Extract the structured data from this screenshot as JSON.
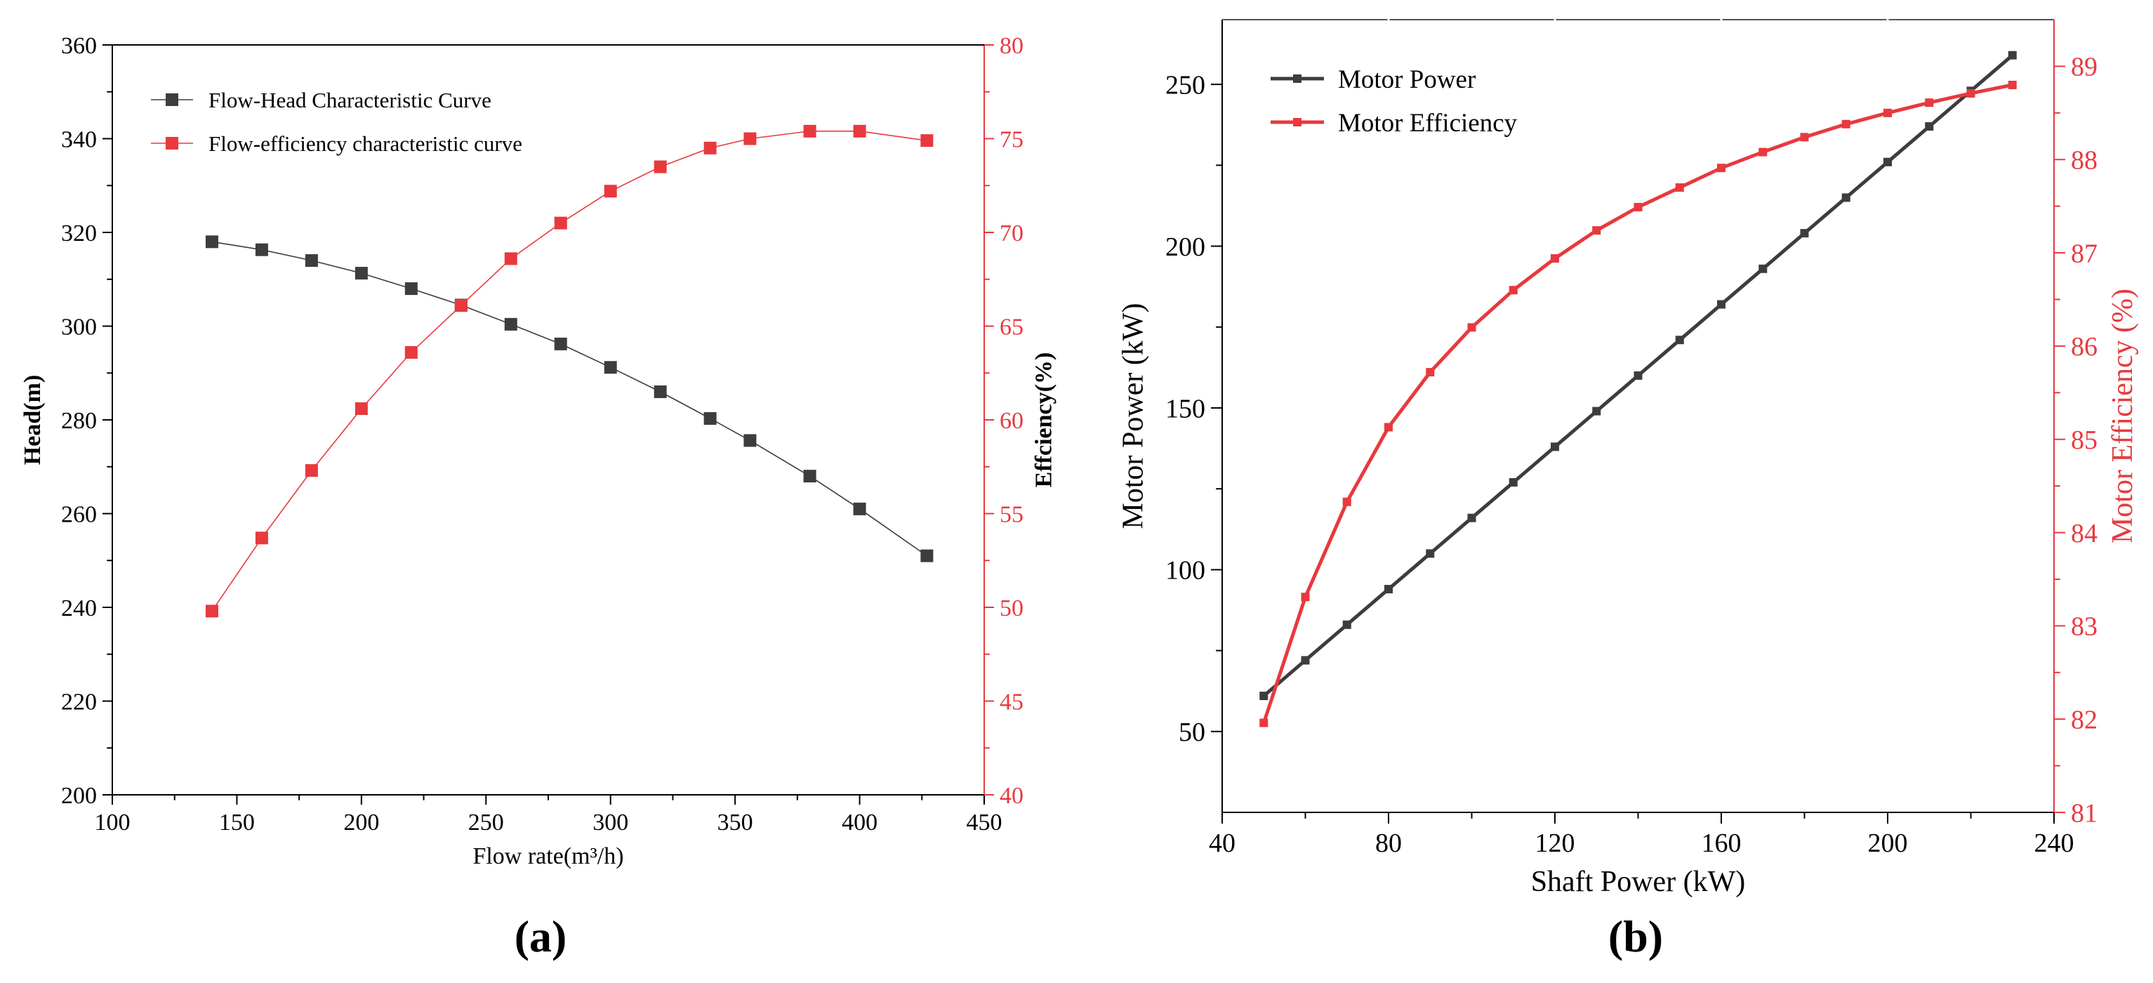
{
  "figure": {
    "panel_a_label": "(a)",
    "panel_b_label": "(b)"
  },
  "chart_data": [
    {
      "panel": "(a)",
      "type": "line",
      "xlabel": "Flow rate(m³/h)",
      "ylabel_left": "Head(m)",
      "ylabel_right": "Effciency(%)",
      "xlim": [
        100,
        450
      ],
      "ylim_left": [
        200,
        360
      ],
      "ylim_right": [
        40,
        80
      ],
      "xticks": [
        100,
        150,
        200,
        250,
        300,
        350,
        400,
        450
      ],
      "yticks_left": [
        200,
        220,
        240,
        260,
        280,
        300,
        320,
        340,
        360
      ],
      "yticks_right": [
        40,
        45,
        50,
        55,
        60,
        65,
        70,
        75,
        80
      ],
      "grid": false,
      "legend_position": "top-left",
      "series": [
        {
          "name": "Flow-Head Characteristic Curve",
          "axis": "left",
          "color": "#3d3d3d",
          "marker": "square",
          "x": [
            140,
            160,
            180,
            200,
            220,
            240,
            260,
            280,
            300,
            320,
            340,
            356,
            380,
            400,
            427
          ],
          "values": [
            318,
            316.3,
            314,
            311.3,
            308,
            304.5,
            300.4,
            296.2,
            291.2,
            286,
            280.3,
            275.6,
            268,
            261,
            251
          ]
        },
        {
          "name": "Flow-efficiency characteristic curve",
          "axis": "right",
          "color": "#e8393e",
          "marker": "square",
          "x": [
            140,
            160,
            180,
            200,
            220,
            240,
            260,
            280,
            300,
            320,
            340,
            356,
            380,
            400,
            427
          ],
          "values": [
            49.8,
            53.7,
            57.3,
            60.6,
            63.6,
            66.1,
            68.6,
            70.5,
            72.2,
            73.5,
            74.5,
            75,
            75.4,
            75.4,
            74.9
          ]
        }
      ]
    },
    {
      "panel": "(b)",
      "type": "line",
      "xlabel": "Shaft Power (kW)",
      "ylabel_left": "Motor Power (kW)",
      "ylabel_right": "Motor Efficiency (%)",
      "xlim": [
        40,
        240
      ],
      "ylim_left": [
        25,
        270
      ],
      "ylim_right": [
        81,
        89.5
      ],
      "xticks": [
        40,
        80,
        120,
        160,
        200,
        240
      ],
      "yticks_left": [
        50,
        100,
        150,
        200,
        250
      ],
      "yticks_right": [
        81,
        82,
        83,
        84,
        85,
        86,
        87,
        88,
        89
      ],
      "grid": false,
      "legend_position": "top-left",
      "series": [
        {
          "name": "Motor Power",
          "axis": "left",
          "color": "#3d3d3d",
          "marker": "square",
          "x": [
            50,
            60,
            70,
            80,
            90,
            100,
            110,
            120,
            130,
            140,
            150,
            160,
            170,
            180,
            190,
            200,
            210,
            220,
            230
          ],
          "values": [
            61,
            72,
            83,
            94,
            105,
            116,
            127,
            138,
            149,
            160,
            171,
            182,
            193,
            204,
            215,
            226,
            237,
            248,
            259
          ]
        },
        {
          "name": "Motor Efficiency",
          "axis": "right",
          "color": "#e8393e",
          "marker": "square",
          "x": [
            50,
            60,
            70,
            80,
            90,
            100,
            110,
            120,
            130,
            140,
            150,
            160,
            170,
            180,
            190,
            200,
            210,
            220,
            230
          ],
          "values": [
            81.96,
            83.31,
            84.33,
            85.13,
            85.72,
            86.2,
            86.6,
            86.94,
            87.24,
            87.49,
            87.7,
            87.91,
            88.08,
            88.24,
            88.38,
            88.5,
            88.61,
            88.71,
            88.8
          ]
        }
      ]
    }
  ]
}
